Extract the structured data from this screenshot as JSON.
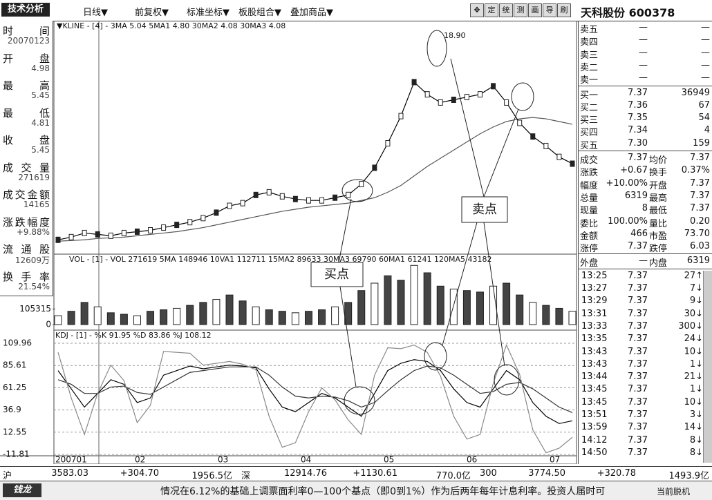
{
  "toolbar": {
    "title": "技术分析",
    "menus": [
      "日线▼",
      "前复权▼",
      "标准坐标▼",
      "板股组合▼",
      "叠加商品▼"
    ],
    "tools": [
      "✥",
      "定",
      "统",
      "测",
      "画",
      "导",
      "刷"
    ],
    "stock_name": "天科股份",
    "stock_code": "600378"
  },
  "info_panel": [
    [
      "时间",
      "20070123"
    ],
    [
      "开盘",
      "4.98"
    ],
    [
      "最高",
      "5.45"
    ],
    [
      "最低",
      "4.81"
    ],
    [
      "收盘",
      "5.45"
    ],
    [
      "成交量",
      "271619"
    ],
    [
      "成交金额",
      "14165"
    ],
    [
      "涨跌幅度",
      "+9.88%"
    ],
    [
      "流通股",
      "12609万"
    ],
    [
      "换手率",
      "21.54%"
    ]
  ],
  "kline": {
    "header": "▼KLINE - [4] - 3MA 5.04  5MA1 4.80  30MA2 4.08  30MA3 4.08",
    "peak_label": "18.90",
    "sell_label": "卖点",
    "buy_label": "买点",
    "ylim": [
      4,
      20
    ],
    "close": [
      4.9,
      5.1,
      5.4,
      5.3,
      5.2,
      5.4,
      5.5,
      5.6,
      5.8,
      6.0,
      6.2,
      6.5,
      6.9,
      7.4,
      7.6,
      8.2,
      8.4,
      8.1,
      7.9,
      7.8,
      7.8,
      8.0,
      8.2,
      9.0,
      10.2,
      12.0,
      14.0,
      16.5,
      15.6,
      15.0,
      15.2,
      15.4,
      15.6,
      16.2,
      15.0,
      13.5,
      12.5,
      11.8,
      11.0,
      10.5
    ],
    "ma": [
      4.8,
      4.85,
      4.9,
      5.0,
      5.05,
      5.1,
      5.2,
      5.3,
      5.4,
      5.5,
      5.65,
      5.8,
      6.0,
      6.2,
      6.4,
      6.6,
      6.8,
      7.0,
      7.15,
      7.3,
      7.4,
      7.5,
      7.6,
      7.8,
      8.0,
      8.4,
      8.9,
      9.6,
      10.3,
      10.9,
      11.5,
      12.1,
      12.7,
      13.2,
      13.6,
      13.8,
      13.9,
      13.8,
      13.6,
      13.4
    ]
  },
  "volume": {
    "header": "VOL - [1] - VOL 271619  5MA 148946  10VA1 112711  15MA2 89633  30MA3 69790  60MA1 61241  120MA5 43182",
    "ylim": [
      0,
      420000
    ],
    "yticks": [
      105315,
      0
    ],
    "values": [
      60000,
      90000,
      150000,
      120000,
      80000,
      70000,
      60000,
      90000,
      100000,
      110000,
      130000,
      150000,
      170000,
      200000,
      160000,
      120000,
      100000,
      90000,
      80000,
      90000,
      100000,
      120000,
      150000,
      230000,
      280000,
      330000,
      300000,
      400000,
      350000,
      260000,
      240000,
      230000,
      220000,
      260000,
      280000,
      200000,
      150000,
      130000,
      110000,
      90000
    ]
  },
  "kdj": {
    "header": "KDJ - [1] - %K 91.95  %D 83.86  %J 108.12",
    "ylim": [
      -11.81,
      109.96
    ],
    "yticks": [
      109.96,
      85.61,
      61.25,
      36.9,
      12.55,
      -11.81
    ],
    "K": [
      80,
      60,
      40,
      55,
      70,
      65,
      45,
      50,
      75,
      80,
      85,
      82,
      84,
      86,
      85,
      83,
      60,
      40,
      35,
      45,
      55,
      50,
      40,
      30,
      55,
      80,
      88,
      92,
      90,
      80,
      60,
      45,
      40,
      60,
      80,
      70,
      45,
      30,
      22,
      25
    ],
    "D": [
      70,
      65,
      55,
      55,
      62,
      63,
      56,
      54,
      62,
      70,
      78,
      80,
      82,
      84,
      84,
      84,
      75,
      62,
      52,
      50,
      52,
      51,
      47,
      40,
      45,
      58,
      70,
      80,
      85,
      83,
      75,
      65,
      55,
      57,
      65,
      67,
      60,
      50,
      40,
      34
    ],
    "J": [
      100,
      50,
      10,
      55,
      86,
      69,
      23,
      42,
      101,
      100,
      99,
      86,
      88,
      90,
      87,
      81,
      30,
      -4,
      1,
      35,
      61,
      48,
      26,
      10,
      75,
      105,
      104,
      108,
      100,
      74,
      30,
      5,
      10,
      66,
      108,
      76,
      15,
      -10,
      -5,
      7
    ]
  },
  "dates": [
    "200701",
    "02",
    "03",
    "04",
    "05",
    "06",
    "07"
  ],
  "order_book": {
    "sell": [
      [
        "卖五",
        "—",
        "—"
      ],
      [
        "卖四",
        "—",
        "—"
      ],
      [
        "卖三",
        "—",
        "—"
      ],
      [
        "卖二",
        "—",
        "—"
      ],
      [
        "卖一",
        "—",
        "—"
      ]
    ],
    "buy": [
      [
        "买一",
        "7.37",
        "36949"
      ],
      [
        "买二",
        "7.36",
        "67"
      ],
      [
        "买三",
        "7.35",
        "54"
      ],
      [
        "买四",
        "7.34",
        "4"
      ],
      [
        "买五",
        "7.30",
        "159"
      ]
    ]
  },
  "stats": [
    [
      "成交",
      "7.37",
      "均价",
      "7.37"
    ],
    [
      "涨跌",
      "+0.67",
      "换手",
      "0.37%"
    ],
    [
      "幅度",
      "+10.00%",
      "开盘",
      "7.37"
    ],
    [
      "总量",
      "6319",
      "最高",
      "7.37"
    ],
    [
      "现量",
      "8",
      "最低",
      "7.37"
    ],
    [
      "委比",
      "100.00%",
      "量比",
      "0.20"
    ],
    [
      "金额",
      "466",
      "市盈",
      "73.70"
    ],
    [
      "涨停",
      "7.37",
      "跌停",
      "6.03"
    ],
    [
      "外盘",
      "—",
      "内盘",
      "6319"
    ]
  ],
  "trades": [
    [
      "13:25",
      "7.37",
      "27↑"
    ],
    [
      "13:27",
      "7.37",
      "7↓"
    ],
    [
      "13:29",
      "7.37",
      "9↓"
    ],
    [
      "13:31",
      "7.37",
      "30↓"
    ],
    [
      "13:33",
      "7.37",
      "300↓"
    ],
    [
      "13:35",
      "7.37",
      "24↓"
    ],
    [
      "13:43",
      "7.37",
      "10↓"
    ],
    [
      "13:43",
      "7.37",
      "1↓"
    ],
    [
      "13:44",
      "7.37",
      "21↓"
    ],
    [
      "13:45",
      "7.37",
      "1↓"
    ],
    [
      "13:45",
      "7.37",
      "10↓"
    ],
    [
      "13:51",
      "7.37",
      "3↓"
    ],
    [
      "13:59",
      "7.37",
      "14↓"
    ],
    [
      "14:12",
      "7.37",
      "8↓"
    ],
    [
      "14:50",
      "7.37",
      "8↓"
    ]
  ],
  "index_bar": [
    [
      "沪",
      "3583.03",
      "+304.70",
      "1956.5亿"
    ],
    [
      "深",
      "12914.76",
      "+1130.61",
      "770.0亿"
    ],
    [
      "300",
      "3774.50",
      "+320.78",
      "1493.9亿"
    ]
  ],
  "ticker": {
    "logo": "钱龙",
    "text": "情况在6.12%的基础上调票面利率0—100个基点（即0到1%）作为后两年每年计息利率。投资人届时可",
    "status": "当前脱机"
  }
}
